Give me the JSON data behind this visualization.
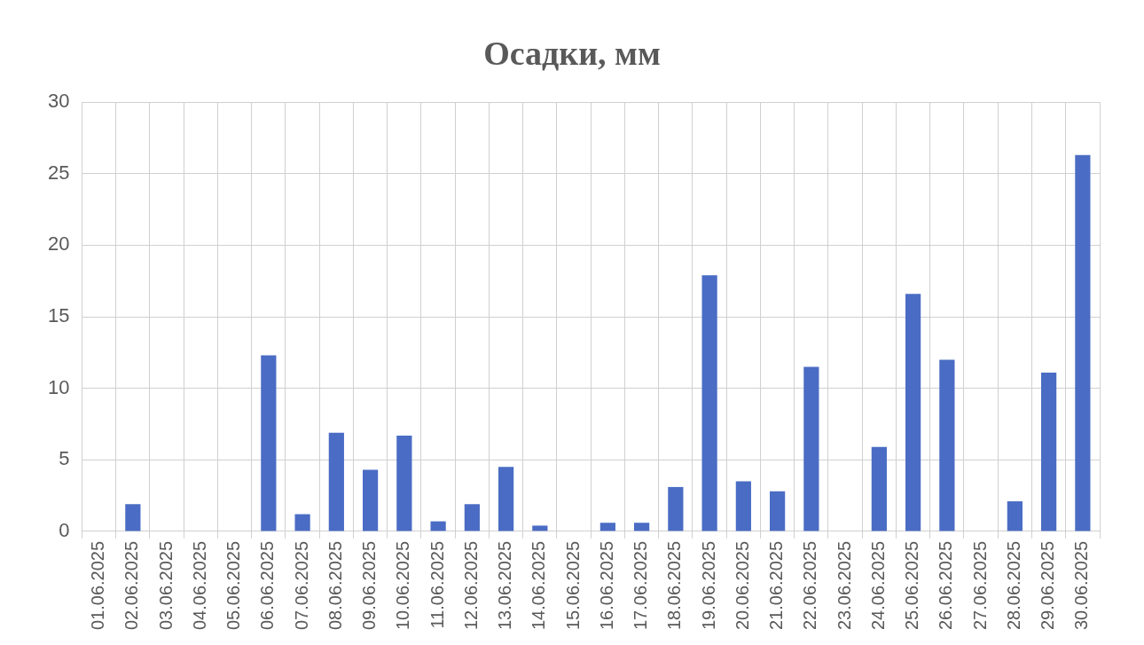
{
  "chart_data": {
    "type": "bar",
    "title": "Осадки, мм",
    "categories": [
      "01.06.2025",
      "02.06.2025",
      "03.06.2025",
      "04.06.2025",
      "05.06.2025",
      "06.06.2025",
      "07.06.2025",
      "08.06.2025",
      "09.06.2025",
      "10.06.2025",
      "11.06.2025",
      "12.06.2025",
      "13.06.2025",
      "14.06.2025",
      "15.06.2025",
      "16.06.2025",
      "17.06.2025",
      "18.06.2025",
      "19.06.2025",
      "20.06.2025",
      "21.06.2025",
      "22.06.2025",
      "23.06.2025",
      "24.06.2025",
      "25.06.2025",
      "26.06.2025",
      "27.06.2025",
      "28.06.2025",
      "29.06.2025",
      "30.06.2025"
    ],
    "values": [
      0,
      1.9,
      0,
      0,
      0,
      12.3,
      1.2,
      6.9,
      4.3,
      6.7,
      0.7,
      1.9,
      4.5,
      0.4,
      0,
      0.6,
      0.6,
      3.1,
      17.9,
      3.5,
      2.8,
      11.5,
      0,
      5.9,
      16.6,
      12.0,
      0,
      2.1,
      11.1,
      26.3
    ],
    "color": "#4a6cc4",
    "ylim": [
      0,
      30
    ],
    "yticks": [
      0,
      5,
      10,
      15,
      20,
      25,
      30
    ],
    "grid": true,
    "legend": false
  }
}
